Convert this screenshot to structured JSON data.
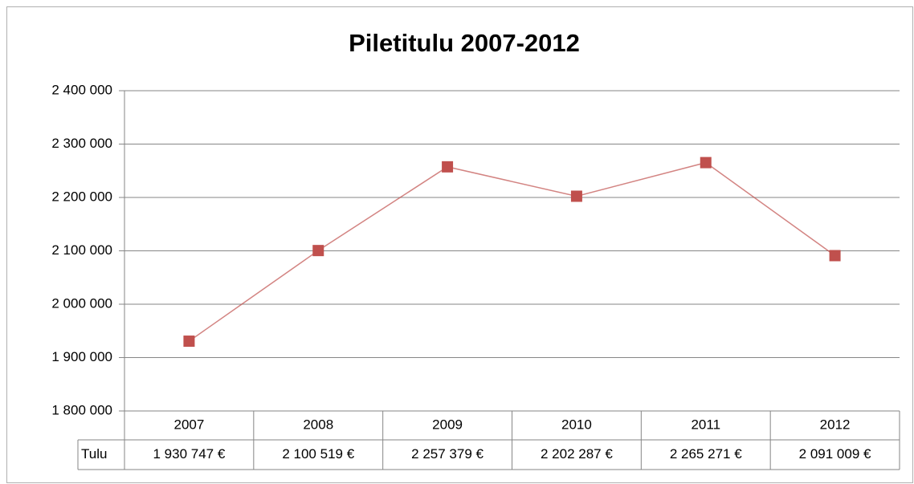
{
  "chart_data": {
    "type": "line",
    "title": "Piletitulu  2007-2012",
    "categories": [
      "2007",
      "2008",
      "2009",
      "2010",
      "2011",
      "2012"
    ],
    "series": [
      {
        "name": "Tulu",
        "color": "#c0504d",
        "values": [
          1930747,
          2100519,
          2257379,
          2202287,
          2265271,
          2091009
        ],
        "value_labels": [
          "1 930 747 €",
          "2 100 519 €",
          "2 257 379 €",
          "2 202 287 €",
          "2 265 271 €",
          "2 091 009 €"
        ]
      }
    ],
    "ylim": [
      1800000,
      2400000
    ],
    "yticks": [
      {
        "value": 1800000,
        "label": "1 800 000"
      },
      {
        "value": 1900000,
        "label": "1 900 000"
      },
      {
        "value": 2000000,
        "label": "2 000 000"
      },
      {
        "value": 2100000,
        "label": "2 100 000"
      },
      {
        "value": 2200000,
        "label": "2 200 000"
      },
      {
        "value": 2300000,
        "label": "2 300 000"
      },
      {
        "value": 2400000,
        "label": "2 400 000"
      }
    ],
    "grid": true,
    "data_table": true
  }
}
